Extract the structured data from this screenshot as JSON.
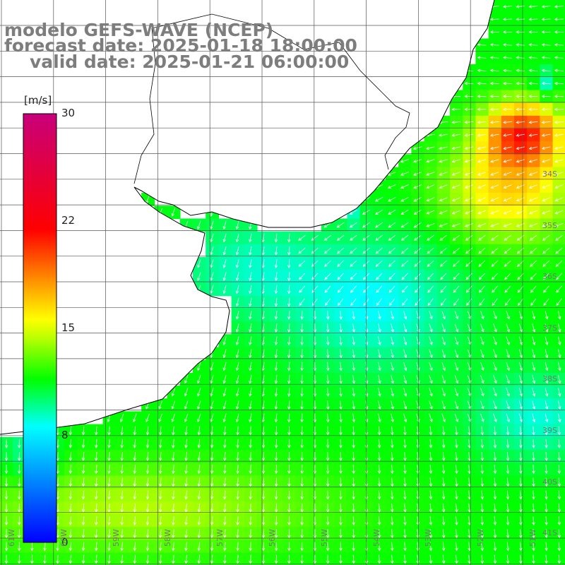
{
  "title": {
    "line1": "modelo GEFS-WAVE (NCEP)",
    "line2": "forecast date: 2025-01-18 18:00:00",
    "line3": "valid date: 2025-01-21 06:00:00"
  },
  "colorbar": {
    "unit": "[m/s]",
    "ticks": [
      "30",
      "22",
      "15",
      "8",
      "0"
    ],
    "tick_values": [
      30,
      22,
      15,
      8,
      0
    ],
    "range": [
      0,
      30
    ],
    "colors": [
      "#0000ff",
      "#00ffff",
      "#00ff00",
      "#ffff00",
      "#ff0000",
      "#c8007a"
    ]
  },
  "axes": {
    "lon_labels": [
      "61W",
      "60W",
      "59W",
      "58W",
      "57W",
      "56W",
      "55W",
      "54W",
      "53W",
      "52W",
      "51W",
      "50W"
    ],
    "lat_labels": [
      "34S",
      "35S",
      "36S",
      "37S",
      "38S",
      "39S",
      "40S",
      "41S"
    ]
  },
  "colors": {
    "land": "#ffffff",
    "coast": "#000000",
    "grid": "#555555",
    "arrows": "#ffffff",
    "title_text": "#7d7d7d"
  }
}
